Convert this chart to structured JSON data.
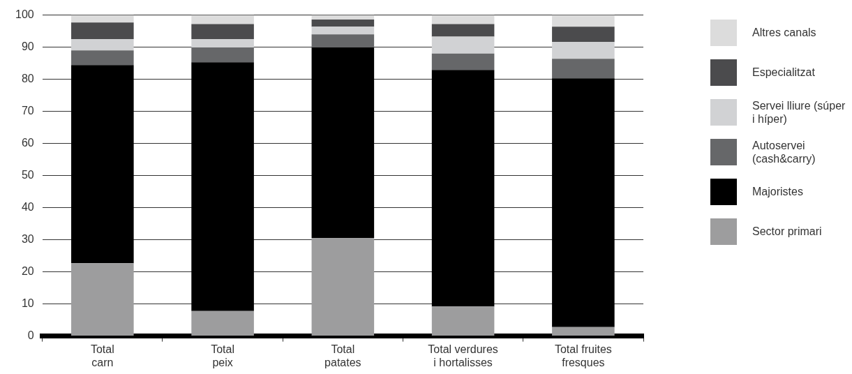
{
  "chart_data": {
    "type": "bar",
    "stacked": true,
    "categories": [
      "Total carn",
      "Total peix",
      "Total patates",
      "Total verdures i hortalisses",
      "Total fruites fresques"
    ],
    "series": [
      {
        "name": "Sector primari",
        "color": "#9d9d9e",
        "values": [
          22.7,
          7.8,
          30.5,
          9.2,
          2.8
        ]
      },
      {
        "name": "Majoristes",
        "color": "#000000",
        "values": [
          61.7,
          77.5,
          59.4,
          73.7,
          77.5
        ]
      },
      {
        "name": "Autoservei (cash&carry)",
        "color": "#666769",
        "values": [
          4.6,
          4.6,
          4.1,
          5.1,
          6.1
        ]
      },
      {
        "name": "Servei lliure (súper i híper)",
        "color": "#d1d2d4",
        "values": [
          3.5,
          2.6,
          2.4,
          5.3,
          5.2
        ]
      },
      {
        "name": "Especialitzat",
        "color": "#4b4b4d",
        "values": [
          5.2,
          4.7,
          2.2,
          3.9,
          4.8
        ]
      },
      {
        "name": "Altres canals",
        "color": "#dcdcdc",
        "values": [
          2.3,
          2.8,
          1.4,
          2.8,
          3.6
        ]
      }
    ],
    "ylim": [
      0,
      100
    ],
    "yticks": [
      0,
      10,
      20,
      30,
      40,
      50,
      60,
      70,
      80,
      90,
      100
    ],
    "grid": "y",
    "legend": "right"
  }
}
